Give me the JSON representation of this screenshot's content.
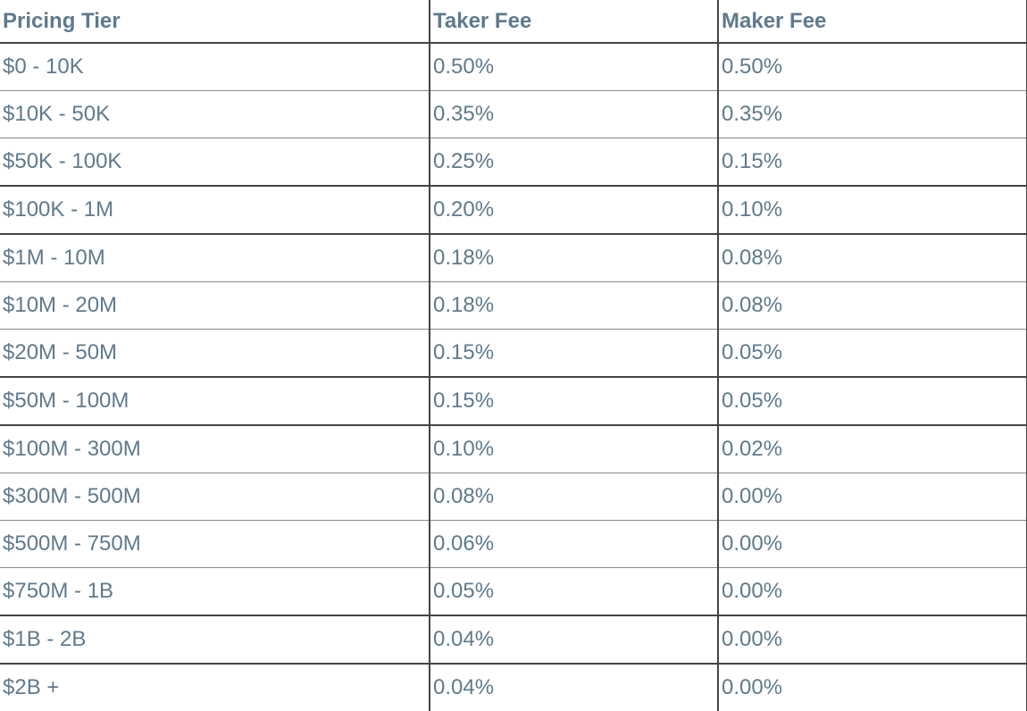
{
  "headers": [
    "Pricing Tier",
    "Taker Fee",
    "Maker Fee"
  ],
  "rows": [
    [
      "$0 - 10K",
      "0.50%",
      "0.50%"
    ],
    [
      "$10K - 50K",
      "0.35%",
      "0.35%"
    ],
    [
      "$50K - 100K",
      "0.25%",
      "0.15%"
    ],
    [
      "$100K - 1M",
      "0.20%",
      "0.10%"
    ],
    [
      "$1M - 10M",
      "0.18%",
      "0.08%"
    ],
    [
      "$10M - 20M",
      "0.18%",
      "0.08%"
    ],
    [
      "$20M - 50M",
      "0.15%",
      "0.05%"
    ],
    [
      "$50M - 100M",
      "0.15%",
      "0.05%"
    ],
    [
      "$100M - 300M",
      "0.10%",
      "0.02%"
    ],
    [
      "$300M - 500M",
      "0.08%",
      "0.00%"
    ],
    [
      "$500M - 750M",
      "0.06%",
      "0.00%"
    ],
    [
      "$750M - 1B",
      "0.05%",
      "0.00%"
    ],
    [
      "$1B - 2B",
      "0.04%",
      "0.00%"
    ],
    [
      "$2B +",
      "0.04%",
      "0.00%"
    ]
  ]
}
